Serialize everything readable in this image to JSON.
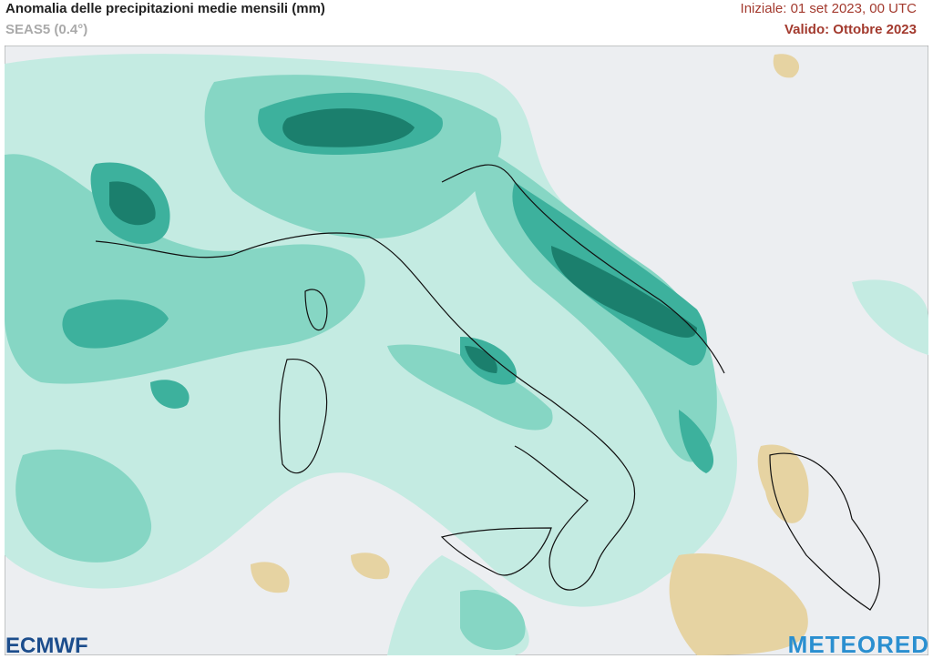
{
  "header": {
    "title": "Anomalia delle precipitazioni medie mensili (mm)",
    "subtitle": "SEAS5 (0.4°)",
    "initialized": "Iniziale: 01 set 2023, 00 UTC",
    "valid": "Valido: Ottobre 2023"
  },
  "logos": {
    "left": "ECMWF",
    "right": "METEORED"
  }
}
